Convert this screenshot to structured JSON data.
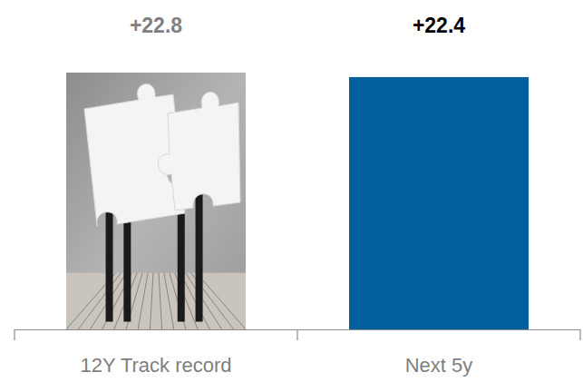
{
  "chart_data": {
    "type": "bar",
    "categories": [
      "12Y Track record",
      "Next 5y"
    ],
    "values": [
      22.8,
      22.4
    ],
    "value_labels": [
      "+22.8",
      "+22.4"
    ],
    "colors": [
      "#9c9c9c",
      "#025f9d"
    ],
    "ylim": [
      0,
      22.8
    ],
    "data_labels": true,
    "grid": false,
    "tick_labels": "x"
  }
}
